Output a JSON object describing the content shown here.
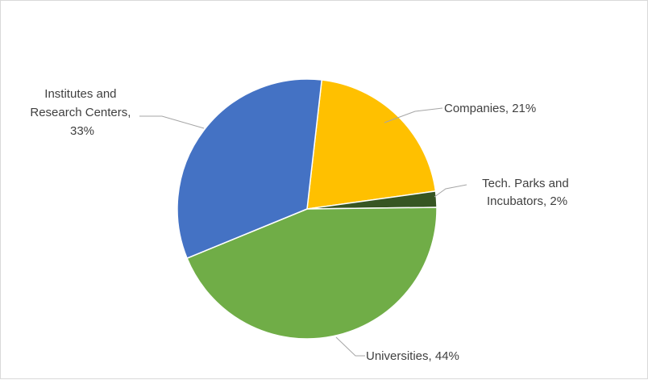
{
  "chart_data": {
    "type": "pie",
    "title": "",
    "slices": [
      {
        "name": "Companies",
        "label": "Companies, 21%",
        "value": 21,
        "color": "#FFC000"
      },
      {
        "name": "Tech. Parks and Incubators",
        "label": "Tech. Parks and Incubators, 2%",
        "value": 2,
        "color": "#375623"
      },
      {
        "name": "Universities",
        "label": "Universities, 44%",
        "value": 44,
        "color": "#70AD47"
      },
      {
        "name": "Institutes and Research Centers",
        "label": "Institutes and Research Centers, 33%",
        "value": 33,
        "color": "#4472C4"
      }
    ],
    "legend": "none"
  },
  "labels": {
    "companies": "Companies, 21%",
    "tech_line1": "Tech. Parks and",
    "tech_line2": "Incubators, 2%",
    "universities": "Universities, 44%",
    "institutes_line1": "Institutes and",
    "institutes_line2": "Research Centers,",
    "institutes_line3": "33%"
  }
}
